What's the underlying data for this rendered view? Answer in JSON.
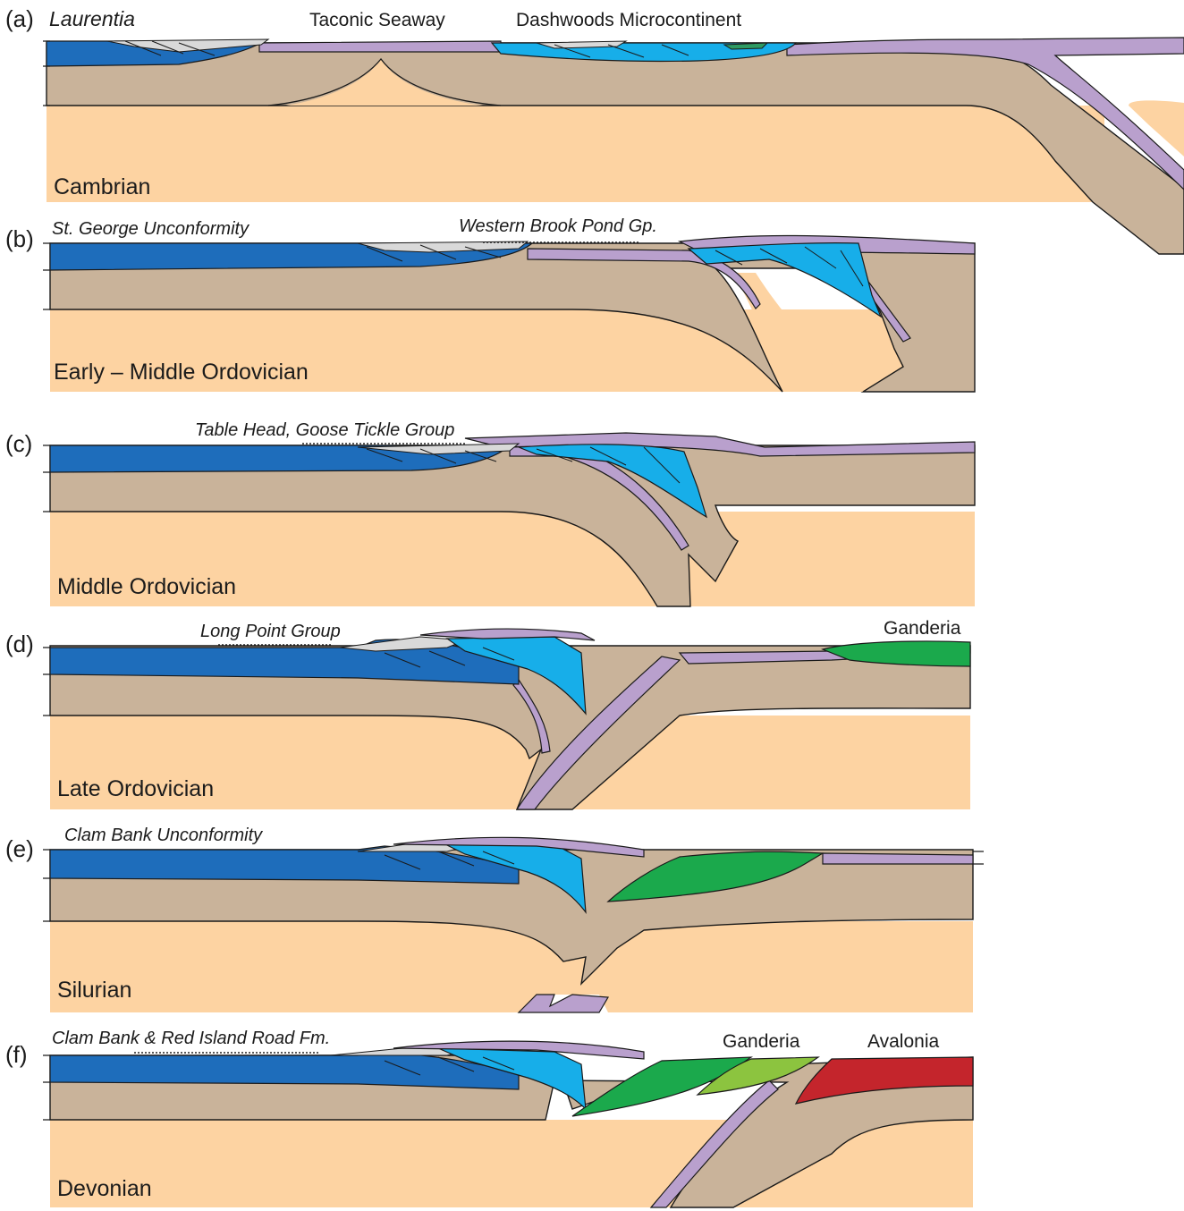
{
  "colors": {
    "mantle": "#fdd3a2",
    "lithosphere": "#c9b39a",
    "oceanic_crust": "#b9a0cd",
    "platform_carbonate": "#1e6dbb",
    "microcontinent_carbonate": "#17aee9",
    "sediment_wedge": "#d9d9d9",
    "ganderia": "#1ba94c",
    "ganderia_light": "#8cc43f",
    "avalonia": "#c4252c",
    "dashwoods_green": "#2e9b63"
  },
  "panels": [
    {
      "letter": "(a)",
      "age": "Cambrian",
      "labels": [
        {
          "text": "Laurentia",
          "style": "italic"
        },
        {
          "text": "Taconic Seaway",
          "style": "normal"
        },
        {
          "text": "Dashwoods Microcontinent",
          "style": "normal"
        }
      ]
    },
    {
      "letter": "(b)",
      "age": "Early – Middle Ordovician",
      "labels": [
        {
          "text": "St. George Unconformity",
          "style": "italic"
        },
        {
          "text": "Western Brook Pond Gp.",
          "style": "italic"
        }
      ]
    },
    {
      "letter": "(c)",
      "age": "Middle Ordovician",
      "labels": [
        {
          "text": "Table Head, Goose Tickle Group",
          "style": "italic"
        }
      ]
    },
    {
      "letter": "(d)",
      "age": "Late Ordovician",
      "labels": [
        {
          "text": "Long Point Group",
          "style": "italic"
        },
        {
          "text": "Ganderia",
          "style": "normal"
        }
      ]
    },
    {
      "letter": "(e)",
      "age": "Silurian",
      "labels": [
        {
          "text": "Clam Bank Unconformity",
          "style": "italic"
        }
      ]
    },
    {
      "letter": "(f)",
      "age": "Devonian",
      "labels": [
        {
          "text": "Clam Bank & Red Island Road Fm.",
          "style": "italic"
        },
        {
          "text": "Ganderia",
          "style": "normal"
        },
        {
          "text": "Avalonia",
          "style": "normal"
        }
      ]
    }
  ]
}
